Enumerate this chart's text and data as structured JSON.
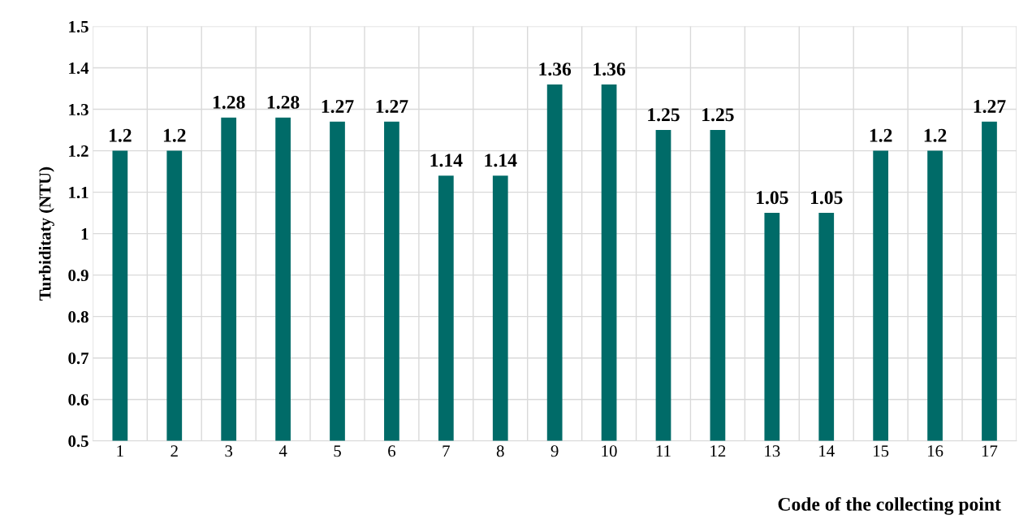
{
  "chart_data": {
    "type": "bar",
    "xlabel": "Code of the collecting point",
    "ylabel": "Turbiditaty (NTU)",
    "categories": [
      "1",
      "2",
      "3",
      "4",
      "5",
      "6",
      "7",
      "8",
      "9",
      "10",
      "11",
      "12",
      "13",
      "14",
      "15",
      "16",
      "17"
    ],
    "values": [
      1.2,
      1.2,
      1.28,
      1.28,
      1.27,
      1.27,
      1.14,
      1.14,
      1.36,
      1.36,
      1.25,
      1.25,
      1.05,
      1.05,
      1.2,
      1.2,
      1.27
    ],
    "color": "#006b68",
    "ylim": [
      0.5,
      1.5
    ],
    "yticks": [
      0.5,
      0.6,
      0.7,
      0.8,
      0.9,
      1,
      1.1,
      1.2,
      1.3,
      1.4,
      1.5
    ],
    "grid": true,
    "data_labels": true
  }
}
